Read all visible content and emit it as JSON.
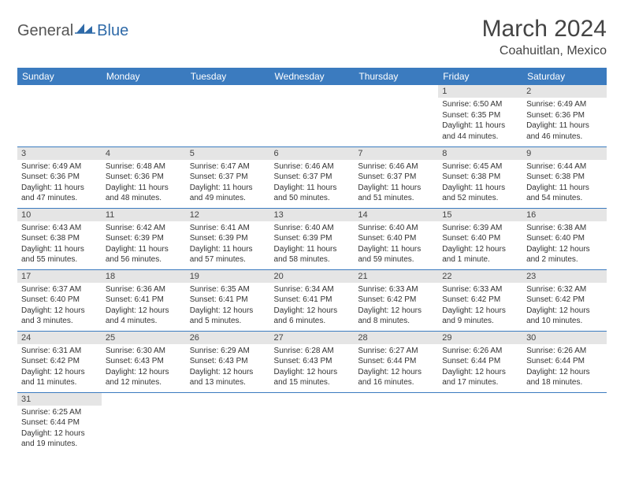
{
  "logo": {
    "part1": "General",
    "part2": "Blue"
  },
  "title": "March 2024",
  "location": "Coahuitlan, Mexico",
  "colors": {
    "header_bg": "#3b7bbf",
    "header_text": "#ffffff",
    "daynum_bg": "#e5e5e5",
    "border": "#3b7bbf",
    "text": "#333333",
    "title_color": "#444444",
    "logo_gray": "#555555",
    "logo_blue": "#2f6aa8"
  },
  "weekdays": [
    "Sunday",
    "Monday",
    "Tuesday",
    "Wednesday",
    "Thursday",
    "Friday",
    "Saturday"
  ],
  "weeks": [
    [
      null,
      null,
      null,
      null,
      null,
      {
        "n": "1",
        "sr": "6:50 AM",
        "ss": "6:35 PM",
        "dl": "11 hours and 44 minutes."
      },
      {
        "n": "2",
        "sr": "6:49 AM",
        "ss": "6:36 PM",
        "dl": "11 hours and 46 minutes."
      }
    ],
    [
      {
        "n": "3",
        "sr": "6:49 AM",
        "ss": "6:36 PM",
        "dl": "11 hours and 47 minutes."
      },
      {
        "n": "4",
        "sr": "6:48 AM",
        "ss": "6:36 PM",
        "dl": "11 hours and 48 minutes."
      },
      {
        "n": "5",
        "sr": "6:47 AM",
        "ss": "6:37 PM",
        "dl": "11 hours and 49 minutes."
      },
      {
        "n": "6",
        "sr": "6:46 AM",
        "ss": "6:37 PM",
        "dl": "11 hours and 50 minutes."
      },
      {
        "n": "7",
        "sr": "6:46 AM",
        "ss": "6:37 PM",
        "dl": "11 hours and 51 minutes."
      },
      {
        "n": "8",
        "sr": "6:45 AM",
        "ss": "6:38 PM",
        "dl": "11 hours and 52 minutes."
      },
      {
        "n": "9",
        "sr": "6:44 AM",
        "ss": "6:38 PM",
        "dl": "11 hours and 54 minutes."
      }
    ],
    [
      {
        "n": "10",
        "sr": "6:43 AM",
        "ss": "6:38 PM",
        "dl": "11 hours and 55 minutes."
      },
      {
        "n": "11",
        "sr": "6:42 AM",
        "ss": "6:39 PM",
        "dl": "11 hours and 56 minutes."
      },
      {
        "n": "12",
        "sr": "6:41 AM",
        "ss": "6:39 PM",
        "dl": "11 hours and 57 minutes."
      },
      {
        "n": "13",
        "sr": "6:40 AM",
        "ss": "6:39 PM",
        "dl": "11 hours and 58 minutes."
      },
      {
        "n": "14",
        "sr": "6:40 AM",
        "ss": "6:40 PM",
        "dl": "11 hours and 59 minutes."
      },
      {
        "n": "15",
        "sr": "6:39 AM",
        "ss": "6:40 PM",
        "dl": "12 hours and 1 minute."
      },
      {
        "n": "16",
        "sr": "6:38 AM",
        "ss": "6:40 PM",
        "dl": "12 hours and 2 minutes."
      }
    ],
    [
      {
        "n": "17",
        "sr": "6:37 AM",
        "ss": "6:40 PM",
        "dl": "12 hours and 3 minutes."
      },
      {
        "n": "18",
        "sr": "6:36 AM",
        "ss": "6:41 PM",
        "dl": "12 hours and 4 minutes."
      },
      {
        "n": "19",
        "sr": "6:35 AM",
        "ss": "6:41 PM",
        "dl": "12 hours and 5 minutes."
      },
      {
        "n": "20",
        "sr": "6:34 AM",
        "ss": "6:41 PM",
        "dl": "12 hours and 6 minutes."
      },
      {
        "n": "21",
        "sr": "6:33 AM",
        "ss": "6:42 PM",
        "dl": "12 hours and 8 minutes."
      },
      {
        "n": "22",
        "sr": "6:33 AM",
        "ss": "6:42 PM",
        "dl": "12 hours and 9 minutes."
      },
      {
        "n": "23",
        "sr": "6:32 AM",
        "ss": "6:42 PM",
        "dl": "12 hours and 10 minutes."
      }
    ],
    [
      {
        "n": "24",
        "sr": "6:31 AM",
        "ss": "6:42 PM",
        "dl": "12 hours and 11 minutes."
      },
      {
        "n": "25",
        "sr": "6:30 AM",
        "ss": "6:43 PM",
        "dl": "12 hours and 12 minutes."
      },
      {
        "n": "26",
        "sr": "6:29 AM",
        "ss": "6:43 PM",
        "dl": "12 hours and 13 minutes."
      },
      {
        "n": "27",
        "sr": "6:28 AM",
        "ss": "6:43 PM",
        "dl": "12 hours and 15 minutes."
      },
      {
        "n": "28",
        "sr": "6:27 AM",
        "ss": "6:44 PM",
        "dl": "12 hours and 16 minutes."
      },
      {
        "n": "29",
        "sr": "6:26 AM",
        "ss": "6:44 PM",
        "dl": "12 hours and 17 minutes."
      },
      {
        "n": "30",
        "sr": "6:26 AM",
        "ss": "6:44 PM",
        "dl": "12 hours and 18 minutes."
      }
    ],
    [
      {
        "n": "31",
        "sr": "6:25 AM",
        "ss": "6:44 PM",
        "dl": "12 hours and 19 minutes."
      },
      null,
      null,
      null,
      null,
      null,
      null
    ]
  ],
  "labels": {
    "sunrise": "Sunrise:",
    "sunset": "Sunset:",
    "daylight": "Daylight:"
  }
}
